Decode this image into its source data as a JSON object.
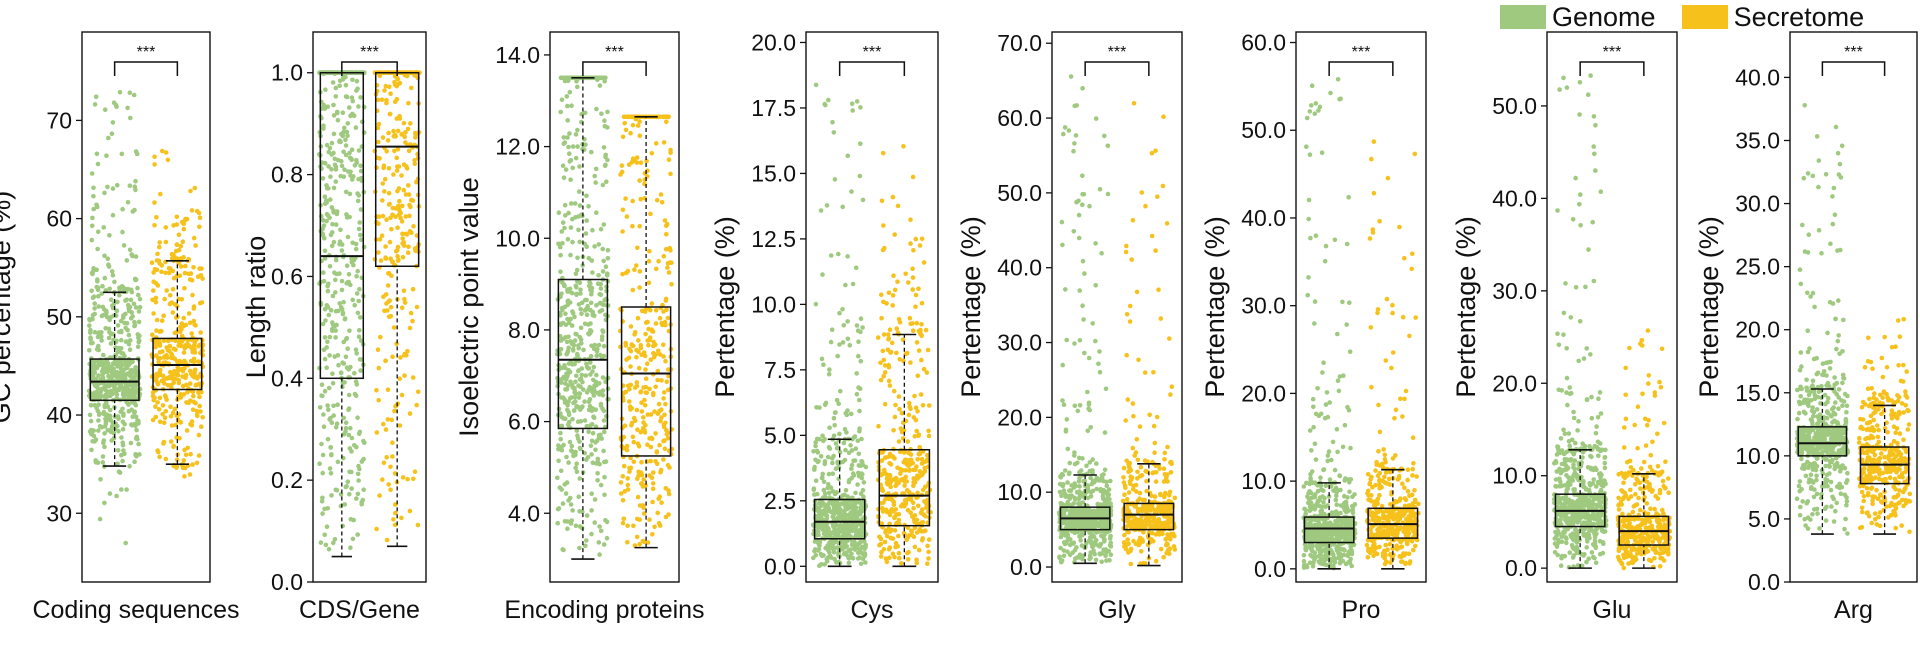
{
  "figure": {
    "legend": [
      {
        "name": "Genome",
        "color": "#9ec97f"
      },
      {
        "name": "Secretome",
        "color": "#f7c11c"
      }
    ],
    "significance_label": "***"
  },
  "chart_data": [
    {
      "type": "box",
      "title": "",
      "xlabel": "Coding sequences",
      "ylabel": "GC percentage (%)",
      "ylim": [
        23,
        79
      ],
      "yticks": [
        30,
        40,
        50,
        60,
        70
      ],
      "ytick_labels": [
        "30",
        "40",
        "50",
        "60",
        "70"
      ],
      "series": [
        {
          "name": "Genome",
          "color": "#9ec97f",
          "whisker_low": 34.8,
          "q1": 41.5,
          "median": 43.4,
          "q3": 45.7,
          "whisker_high": 52.5,
          "min": 24.8,
          "max": 74.2
        },
        {
          "name": "Secretome",
          "color": "#f7c11c",
          "whisker_low": 35.0,
          "q1": 42.6,
          "median": 45.1,
          "q3": 47.8,
          "whisker_high": 55.7,
          "min": 33.6,
          "max": 67.4
        }
      ],
      "significance": "***"
    },
    {
      "type": "box",
      "title": "",
      "xlabel": "CDS/Gene",
      "ylabel": "Length ratio",
      "ylim": [
        0,
        1.08
      ],
      "yticks": [
        0,
        0.2,
        0.4,
        0.6,
        0.8,
        1.0
      ],
      "ytick_labels": [
        "0.0",
        "0.2",
        "0.4",
        "0.6",
        "0.8",
        "1.0"
      ],
      "series": [
        {
          "name": "Genome",
          "color": "#9ec97f",
          "whisker_low": 0.05,
          "q1": 0.4,
          "median": 0.64,
          "q3": 1.0,
          "whisker_high": 1.0,
          "min": 0.05,
          "max": 1.0
        },
        {
          "name": "Secretome",
          "color": "#f7c11c",
          "whisker_low": 0.07,
          "q1": 0.62,
          "median": 0.855,
          "q3": 1.0,
          "whisker_high": 1.0,
          "min": 0.07,
          "max": 1.0
        }
      ],
      "significance": "***"
    },
    {
      "type": "box",
      "title": "",
      "xlabel": "Encoding proteins",
      "ylabel": "Isoelectric point value",
      "ylim": [
        2.5,
        14.5
      ],
      "yticks": [
        4,
        6,
        8,
        10,
        12,
        14
      ],
      "ytick_labels": [
        "4.0",
        "6.0",
        "8.0",
        "10.0",
        "12.0",
        "14.0"
      ],
      "series": [
        {
          "name": "Genome",
          "color": "#9ec97f",
          "whisker_low": 3.0,
          "q1": 5.85,
          "median": 7.35,
          "q3": 9.1,
          "whisker_high": 13.5,
          "min": 3.0,
          "max": 13.5
        },
        {
          "name": "Secretome",
          "color": "#f7c11c",
          "whisker_low": 3.25,
          "q1": 5.25,
          "median": 7.05,
          "q3": 8.5,
          "whisker_high": 12.65,
          "min": 3.25,
          "max": 12.65
        }
      ],
      "significance": "***"
    },
    {
      "type": "box",
      "title": "",
      "xlabel": "Cys",
      "ylabel": "Pertentage (%)",
      "ylim": [
        -0.6,
        20.4
      ],
      "yticks": [
        0,
        2.5,
        5,
        7.5,
        10,
        12.5,
        15,
        17.5,
        20
      ],
      "ytick_labels": [
        "0.0",
        "2.5",
        "5.0",
        "7.5",
        "10.0",
        "12.5",
        "15.0",
        "17.5",
        "20.0"
      ],
      "series": [
        {
          "name": "Genome",
          "color": "#9ec97f",
          "whisker_low": 0,
          "q1": 1.05,
          "median": 1.7,
          "q3": 2.55,
          "whisker_high": 4.85,
          "min": 0,
          "max": 18.6
        },
        {
          "name": "Secretome",
          "color": "#f7c11c",
          "whisker_low": 0,
          "q1": 1.55,
          "median": 2.7,
          "q3": 4.45,
          "whisker_high": 8.85,
          "min": 0,
          "max": 16.4
        }
      ],
      "significance": "***"
    },
    {
      "type": "box",
      "title": "",
      "xlabel": "Gly",
      "ylabel": "Pertentage (%)",
      "ylim": [
        -2.0,
        71.5
      ],
      "yticks": [
        0,
        10,
        20,
        30,
        40,
        50,
        60,
        70
      ],
      "ytick_labels": [
        "0.0",
        "10.0",
        "20.0",
        "30.0",
        "40.0",
        "50.0",
        "60.0",
        "70.0"
      ],
      "series": [
        {
          "name": "Genome",
          "color": "#9ec97f",
          "whisker_low": 0.5,
          "q1": 5.0,
          "median": 6.5,
          "q3": 8.0,
          "whisker_high": 12.3,
          "min": 0.5,
          "max": 66.5
        },
        {
          "name": "Secretome",
          "color": "#f7c11c",
          "whisker_low": 0.2,
          "q1": 5.0,
          "median": 7.0,
          "q3": 8.5,
          "whisker_high": 13.8,
          "min": 0.2,
          "max": 63.5
        }
      ],
      "significance": "***"
    },
    {
      "type": "box",
      "title": "",
      "xlabel": "Pro",
      "ylabel": "Pertentage (%)",
      "ylim": [
        -1.5,
        61.2
      ],
      "yticks": [
        0,
        10,
        20,
        30,
        40,
        50,
        60
      ],
      "ytick_labels": [
        "0.0",
        "10.0",
        "20.0",
        "30.0",
        "40.0",
        "50.0",
        "60.0"
      ],
      "series": [
        {
          "name": "Genome",
          "color": "#9ec97f",
          "whisker_low": 0,
          "q1": 3.0,
          "median": 4.6,
          "q3": 5.9,
          "whisker_high": 9.8,
          "min": 0,
          "max": 56.0
        },
        {
          "name": "Secretome",
          "color": "#f7c11c",
          "whisker_low": 0,
          "q1": 3.5,
          "median": 5.1,
          "q3": 6.9,
          "whisker_high": 11.3,
          "min": 0,
          "max": 51.0
        }
      ],
      "significance": "***"
    },
    {
      "type": "box",
      "title": "",
      "xlabel": "Glu",
      "ylabel": "Pertentage (%)",
      "ylim": [
        -1.5,
        58.0
      ],
      "yticks": [
        0,
        10,
        20,
        30,
        40,
        50
      ],
      "ytick_labels": [
        "0.0",
        "10.0",
        "20.0",
        "30.0",
        "40.0",
        "50.0"
      ],
      "series": [
        {
          "name": "Genome",
          "color": "#9ec97f",
          "whisker_low": 0,
          "q1": 4.5,
          "median": 6.2,
          "q3": 8.0,
          "whisker_high": 12.8,
          "min": 0,
          "max": 54.0
        },
        {
          "name": "Secretome",
          "color": "#f7c11c",
          "whisker_low": 0,
          "q1": 2.5,
          "median": 4.0,
          "q3": 5.6,
          "whisker_high": 10.2,
          "min": 0,
          "max": 26.5
        }
      ],
      "significance": "***"
    },
    {
      "type": "box",
      "title": "",
      "xlabel": "Arg",
      "ylabel": "Pertentage (%)",
      "ylim": [
        0,
        43.6
      ],
      "yticks": [
        0,
        5,
        10,
        15,
        20,
        25,
        30,
        35,
        40
      ],
      "ytick_labels": [
        "0.0",
        "5.0",
        "10.0",
        "15.0",
        "20.0",
        "25.0",
        "30.0",
        "35.0",
        "40.0"
      ],
      "series": [
        {
          "name": "Genome",
          "color": "#9ec97f",
          "whisker_low": 3.8,
          "q1": 10.0,
          "median": 11.0,
          "q3": 12.3,
          "whisker_high": 15.3,
          "min": 3.8,
          "max": 38.0
        },
        {
          "name": "Secretome",
          "color": "#f7c11c",
          "whisker_low": 3.8,
          "q1": 7.8,
          "median": 9.3,
          "q3": 10.7,
          "whisker_high": 14.0,
          "min": 3.8,
          "max": 21.0
        }
      ],
      "significance": "***"
    }
  ]
}
